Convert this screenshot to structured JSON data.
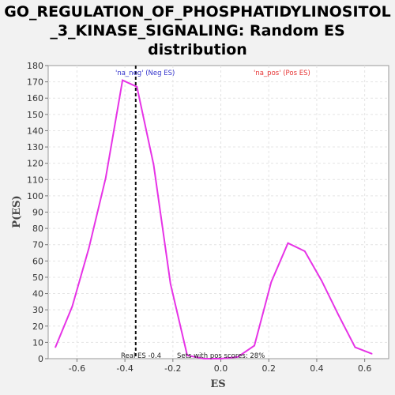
{
  "chart_data": {
    "type": "line",
    "title_lines": [
      "GO_REGULATION_OF_PHOSPHATIDYLINOSITOL",
      "_3_KINASE_SIGNALING: Random ES",
      "distribution"
    ],
    "xlabel": "ES",
    "ylabel": "P(ES)",
    "xlim": [
      -0.72,
      0.7
    ],
    "ylim": [
      0,
      180
    ],
    "xticks": [
      -0.6,
      -0.4,
      -0.2,
      0.0,
      0.2,
      0.4,
      0.6
    ],
    "xtick_labels": [
      "-0.6",
      "-0.4",
      "-0.2",
      "0.0",
      "0.2",
      "0.4",
      "0.6"
    ],
    "yticks": [
      0,
      10,
      20,
      30,
      40,
      50,
      60,
      70,
      80,
      90,
      100,
      110,
      120,
      130,
      140,
      150,
      160,
      170,
      180
    ],
    "grid": true,
    "series": [
      {
        "color": "#e633e6",
        "x": [
          -0.69,
          -0.62,
          -0.55,
          -0.48,
          -0.41,
          -0.35,
          -0.28,
          -0.21,
          -0.14,
          -0.07,
          0.0,
          0.07,
          0.14,
          0.21,
          0.28,
          0.35,
          0.42,
          0.49,
          0.56,
          0.63
        ],
        "y": [
          7,
          32,
          68,
          111,
          171,
          167,
          119,
          46,
          2,
          0,
          0,
          1,
          8,
          47,
          71,
          66,
          48,
          27,
          7,
          3
        ]
      }
    ],
    "real_es": -0.355,
    "annotations": {
      "neg_label": "'na_neg' (Neg ES)",
      "neg_color": "#3333cc",
      "pos_label": "'na_pos' (Pos ES)",
      "pos_color": "#e63333",
      "real_es_text": "Real ES -0.4",
      "sets_text": "Sets with pos scores: 28%"
    }
  }
}
